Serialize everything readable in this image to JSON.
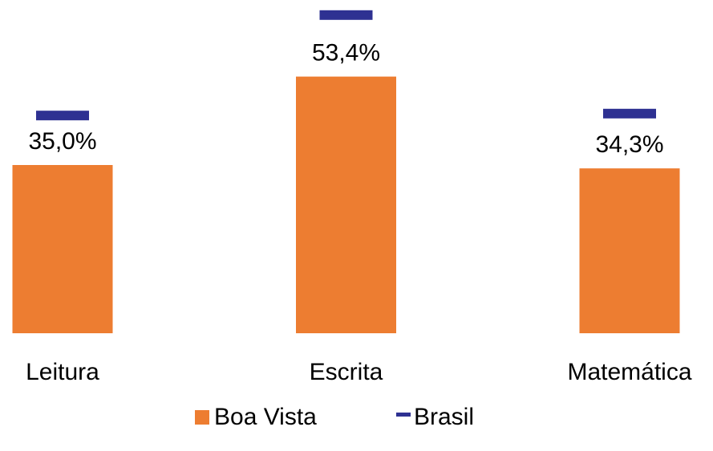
{
  "chart_data": {
    "type": "bar",
    "categories": [
      "Leitura",
      "Escrita",
      "Matemática"
    ],
    "series": [
      {
        "name": "Boa Vista",
        "color": "#ED7D31",
        "values": [
          35.0,
          53.4,
          34.3
        ],
        "value_labels": [
          "35,0%",
          "53,4%",
          "34,3%"
        ]
      },
      {
        "name": "Brasil",
        "color": "#2E3192",
        "values": [
          45.3,
          66.2,
          45.7
        ],
        "marker": "dash"
      }
    ],
    "legend": "bottom"
  }
}
